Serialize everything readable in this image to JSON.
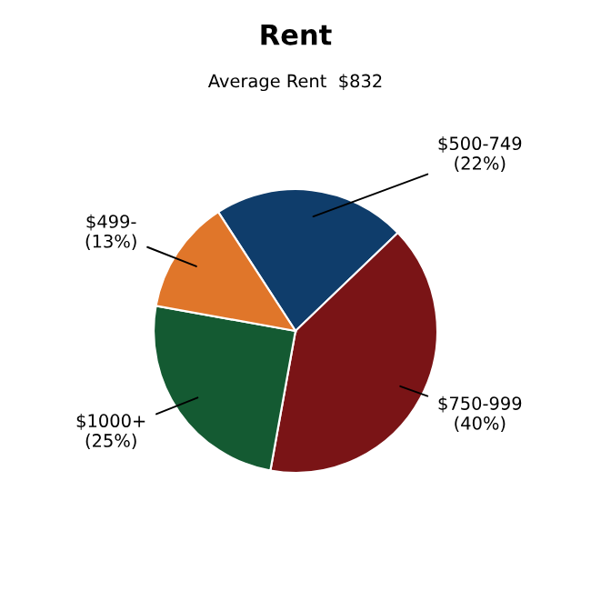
{
  "chart_data": {
    "type": "pie",
    "title": "Rent",
    "subtitle": "Average Rent  $832",
    "categories": [
      "$500-749",
      "$750-999",
      "$1000+",
      "$499-"
    ],
    "values": [
      22,
      40,
      25,
      13
    ],
    "value_labels": [
      "(22%)",
      "(40%)",
      "(25%)",
      "(13%)"
    ],
    "colors": [
      "#0f3d6b",
      "#7a1416",
      "#145a32",
      "#e0762a"
    ]
  }
}
